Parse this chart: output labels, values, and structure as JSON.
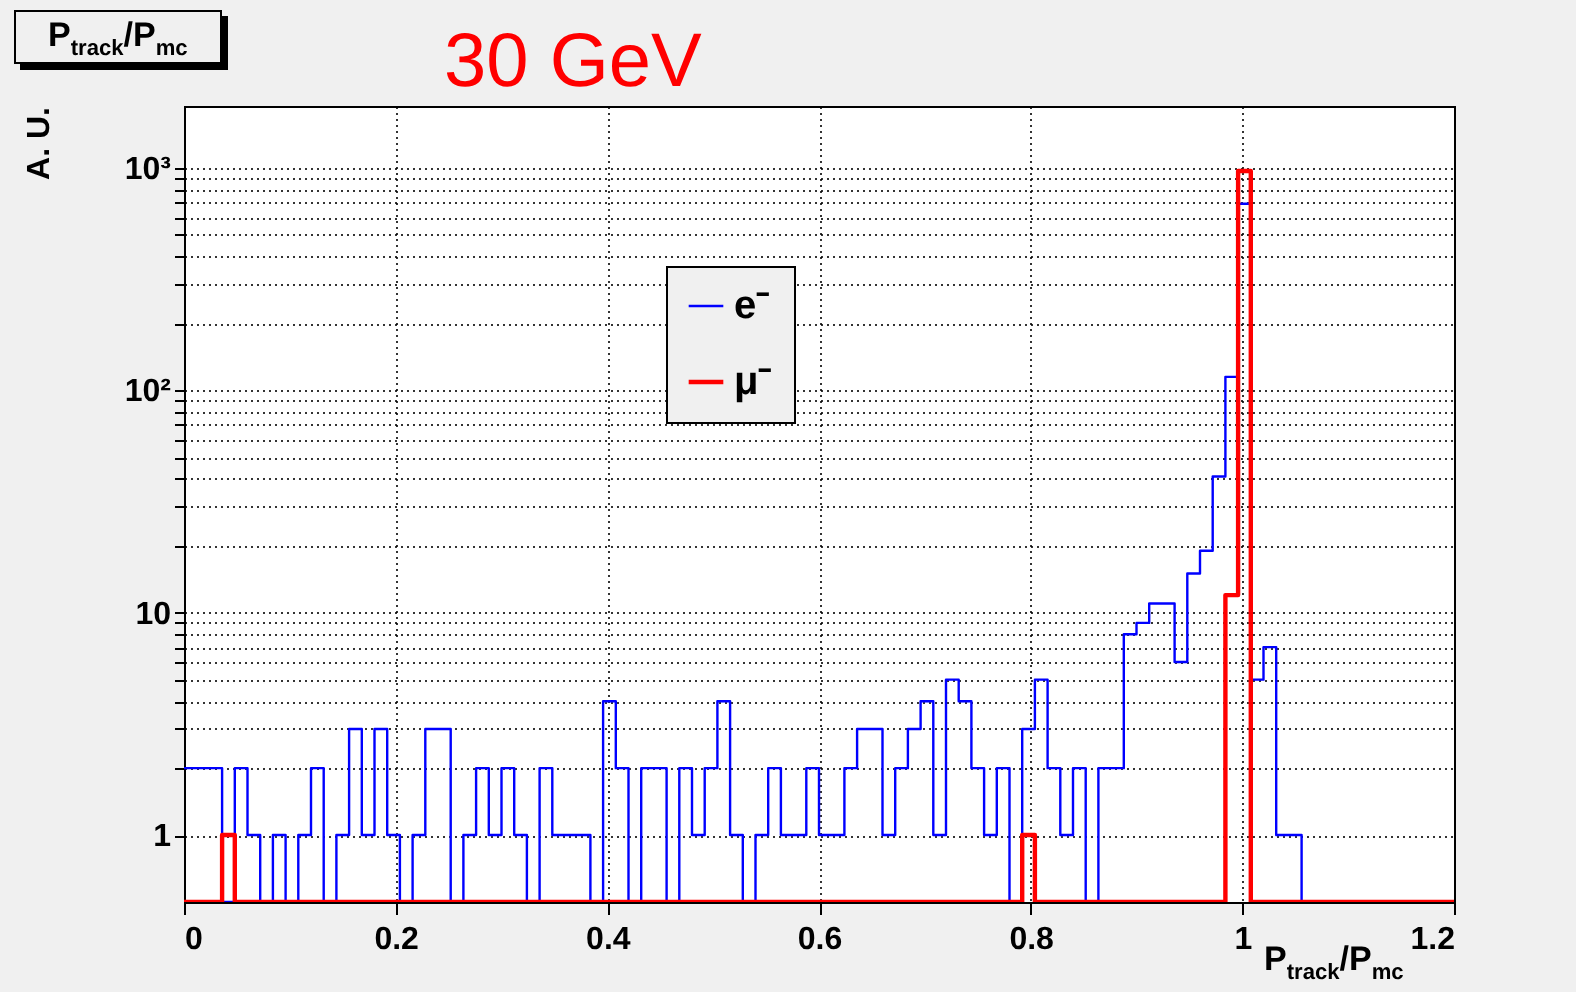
{
  "chart_data": {
    "type": "histogram",
    "title": "P$_{track}$/P$_{mc}$",
    "xlabel": "P$_{track}$/P$_{mc}$",
    "ylabel": "A. U.",
    "annotations": [
      "30 GeV"
    ],
    "bins": [
      0,
      0.012,
      0.024,
      0.036,
      0.048,
      0.06,
      0.072,
      0.084,
      0.096,
      0.108,
      0.12,
      0.132,
      0.144,
      0.156,
      0.168,
      0.18,
      0.192,
      0.204,
      0.216,
      0.228,
      0.24,
      0.252,
      0.264,
      0.276,
      0.288,
      0.3,
      0.312,
      0.324,
      0.336,
      0.348,
      0.36,
      0.372,
      0.384,
      0.396,
      0.408,
      0.42,
      0.432,
      0.444,
      0.456,
      0.468,
      0.48,
      0.492,
      0.504,
      0.516,
      0.528,
      0.54,
      0.552,
      0.564,
      0.576,
      0.588,
      0.6,
      0.612,
      0.624,
      0.636,
      0.648,
      0.66,
      0.672,
      0.684,
      0.696,
      0.708,
      0.72,
      0.732,
      0.744,
      0.756,
      0.768,
      0.78,
      0.792,
      0.804,
      0.816,
      0.828,
      0.84,
      0.852,
      0.864,
      0.876,
      0.888,
      0.9,
      0.912,
      0.924,
      0.936,
      0.948,
      0.96,
      0.972,
      0.984,
      0.996,
      1.008,
      1.02,
      1.032,
      1.044,
      1.056,
      1.068,
      1.08,
      1.092,
      1.104,
      1.116,
      1.128,
      1.14,
      1.152,
      1.164,
      1.176,
      1.188,
      1.2
    ],
    "series": [
      {
        "name": "e⁻",
        "color": "#0000ff",
        "values": [
          2,
          2,
          2,
          null,
          2,
          1,
          null,
          1,
          null,
          1,
          2,
          null,
          1,
          3,
          1,
          3,
          1,
          null,
          1,
          3,
          3,
          null,
          1,
          2,
          1,
          2,
          1,
          null,
          2,
          1,
          1,
          1,
          null,
          4,
          2,
          null,
          2,
          2,
          null,
          2,
          1,
          2,
          4,
          1,
          null,
          1,
          2,
          1,
          1,
          2,
          1,
          1,
          2,
          3,
          3,
          1,
          2,
          3,
          4,
          1,
          5,
          4,
          2,
          1,
          2,
          null,
          3,
          5,
          2,
          1,
          2,
          null,
          2,
          2,
          8,
          9,
          11,
          11,
          6,
          15,
          19,
          41,
          115,
          690,
          5,
          7,
          1,
          1,
          null,
          null,
          null,
          null,
          null,
          null,
          null,
          null,
          null,
          null,
          null,
          null
        ]
      },
      {
        "name": "μ⁻",
        "color": "#ff0000",
        "values": [
          null,
          null,
          null,
          1,
          null,
          null,
          null,
          null,
          null,
          null,
          null,
          null,
          null,
          null,
          null,
          null,
          null,
          null,
          null,
          null,
          null,
          null,
          null,
          null,
          null,
          null,
          null,
          null,
          null,
          null,
          null,
          null,
          null,
          null,
          null,
          null,
          null,
          null,
          null,
          null,
          null,
          null,
          null,
          null,
          null,
          null,
          null,
          null,
          null,
          null,
          null,
          null,
          null,
          null,
          null,
          null,
          null,
          null,
          null,
          null,
          null,
          null,
          null,
          null,
          null,
          null,
          1,
          null,
          null,
          null,
          null,
          null,
          null,
          null,
          null,
          null,
          null,
          null,
          null,
          null,
          null,
          null,
          12,
          970,
          null,
          null,
          null,
          null,
          null,
          null,
          null,
          null,
          null,
          null,
          null,
          null,
          null,
          null,
          null,
          null
        ]
      }
    ],
    "xlim": [
      0,
      1.2
    ],
    "xticks": [
      0,
      0.2,
      0.4,
      0.6,
      0.8,
      1,
      1.2
    ],
    "ylim": [
      0.5,
      1900
    ],
    "log": "y",
    "yticks": [
      1,
      {
        "value": 2,
        "label": null
      },
      {
        "value": 3,
        "label": null
      },
      {
        "value": 4,
        "label": null
      },
      {
        "value": 5,
        "label": null
      },
      {
        "value": 6,
        "label": null
      },
      {
        "value": 7,
        "label": null
      },
      {
        "value": 8,
        "label": null
      },
      {
        "value": 9,
        "label": null
      },
      10,
      {
        "value": 20,
        "label": null
      },
      {
        "value": 30,
        "label": null
      },
      {
        "value": 40,
        "label": null
      },
      {
        "value": 50,
        "label": null
      },
      {
        "value": 60,
        "label": null
      },
      {
        "value": 70,
        "label": null
      },
      {
        "value": 80,
        "label": null
      },
      {
        "value": 90,
        "label": null
      },
      {
        "value": 100,
        "label": "10²"
      },
      {
        "value": 200,
        "label": null
      },
      {
        "value": 300,
        "label": null
      },
      {
        "value": 400,
        "label": null
      },
      {
        "value": 500,
        "label": null
      },
      {
        "value": 600,
        "label": null
      },
      {
        "value": 700,
        "label": null
      },
      {
        "value": 800,
        "label": null
      },
      {
        "value": 900,
        "label": null
      },
      {
        "value": 1000,
        "label": "10³"
      }
    ],
    "grid": true,
    "legend": "top"
  }
}
